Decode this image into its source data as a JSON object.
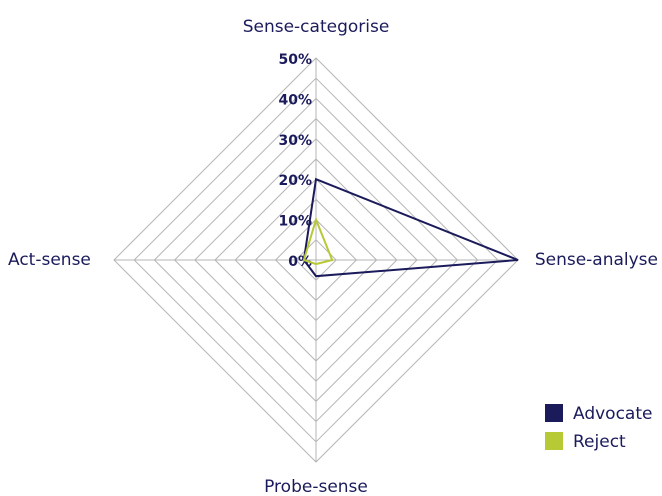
{
  "chart_data": {
    "type": "radar",
    "categories": [
      "Sense-categorise",
      "Sense-analyse",
      "Probe-sense",
      "Act-sense"
    ],
    "series": [
      {
        "name": "Advocate",
        "color": "#1b1b5c",
        "values": [
          20,
          50,
          4,
          3
        ]
      },
      {
        "name": "Reject",
        "color": "#b7c935",
        "values": [
          10,
          4,
          1,
          3
        ]
      }
    ],
    "ylim": [
      0,
      50
    ],
    "yticks": [
      {
        "value": 0,
        "label": "0%"
      },
      {
        "value": 10,
        "label": "10%"
      },
      {
        "value": 20,
        "label": "20%"
      },
      {
        "value": 30,
        "label": "30%"
      },
      {
        "value": 40,
        "label": "40%"
      },
      {
        "value": 50,
        "label": "50%"
      }
    ],
    "grid": true,
    "legend": "bottom-right"
  }
}
